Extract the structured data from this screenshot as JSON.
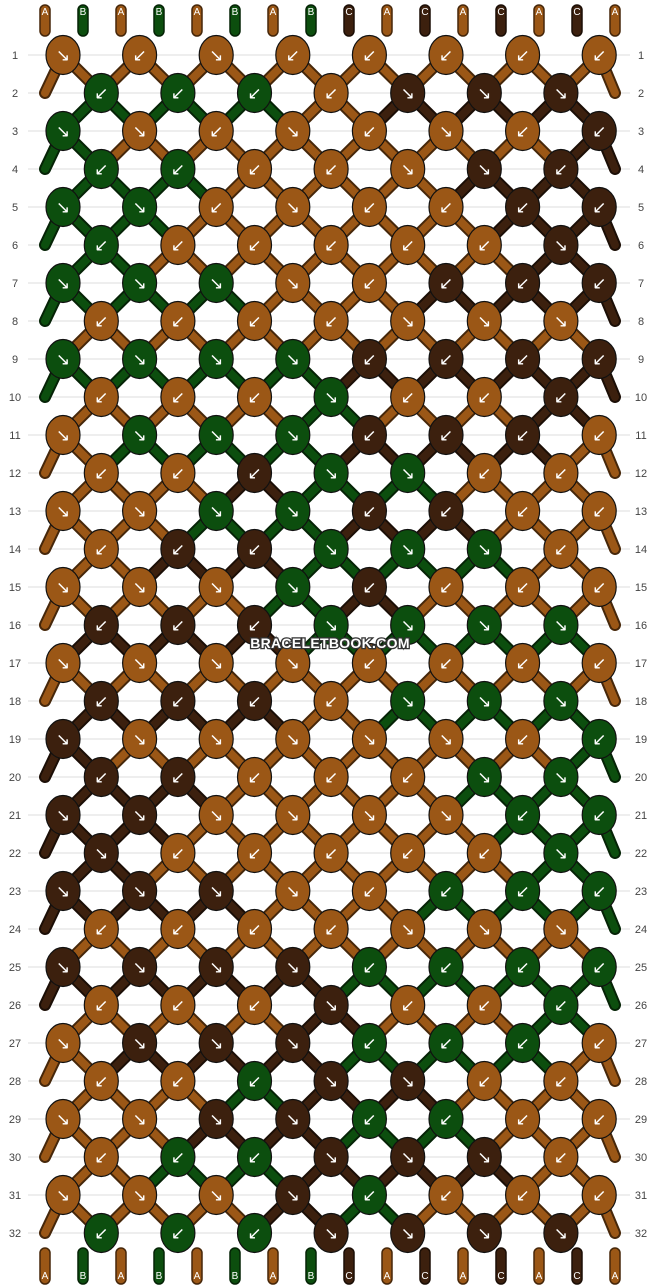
{
  "pattern": {
    "watermark": "BRACELETBOOK.COM",
    "strings": [
      "A",
      "B",
      "A",
      "B",
      "A",
      "B",
      "A",
      "B",
      "C",
      "A",
      "C",
      "A",
      "C",
      "A",
      "C",
      "A"
    ],
    "bottom_strings": [
      "A",
      "B",
      "A",
      "B",
      "A",
      "B",
      "A",
      "B",
      "C",
      "A",
      "C",
      "A",
      "C",
      "A",
      "C",
      "A"
    ],
    "colors": {
      "A": "#9b5716",
      "B": "#0c4e0e",
      "C": "#3c200e"
    },
    "row_numbers": [
      "1",
      "2",
      "3",
      "4",
      "5",
      "6",
      "7",
      "8",
      "9",
      "10",
      "11",
      "12",
      "13",
      "14",
      "15",
      "16",
      "17",
      "18",
      "19",
      "20",
      "21",
      "22",
      "23",
      "24",
      "25",
      "26",
      "27",
      "28",
      "29",
      "30",
      "31",
      "32"
    ],
    "knot_arrow_glyphs": {
      "forward": "↘",
      "backward": "↙",
      "forward_backward": "↘↙",
      "backward_forward": "↙↘"
    },
    "rows": [
      [
        "A:f",
        "A:b",
        "A:f",
        "A:b",
        "A:b",
        "A:b",
        "A:b",
        "A:b"
      ],
      [
        "B:b",
        "B:b",
        "B:b",
        "A:b",
        "C:f",
        "C:f",
        "C:f"
      ],
      [
        "B:f",
        "A:f",
        "A:b",
        "A:f",
        "A:b",
        "A:f",
        "A:b",
        "C:b"
      ],
      [
        "B:b",
        "B:b",
        "A:b",
        "A:b",
        "A:f",
        "C:f",
        "C:b"
      ],
      [
        "B:f",
        "B:f",
        "A:b",
        "A:f",
        "A:b",
        "A:b",
        "C:b",
        "C:b"
      ],
      [
        "B:b",
        "A:b",
        "A:b",
        "A:b",
        "A:b",
        "A:b",
        "C:f"
      ],
      [
        "B:f",
        "B:f",
        "B:f",
        "A:f",
        "A:b",
        "C:b",
        "C:b",
        "C:b"
      ],
      [
        "A:b",
        "A:b",
        "A:b",
        "A:b",
        "A:f",
        "A:f",
        "A:f"
      ],
      [
        "B:f",
        "B:f",
        "B:f",
        "B:f",
        "C:b",
        "C:b",
        "C:b",
        "C:b"
      ],
      [
        "A:b",
        "A:b",
        "A:b",
        "B:f",
        "A:b",
        "A:b",
        "C:b"
      ],
      [
        "A:f",
        "B:f",
        "B:f",
        "B:f",
        "C:b",
        "C:b",
        "C:b",
        "A:b"
      ],
      [
        "A:b",
        "A:b",
        "C:b",
        "B:f",
        "B:f",
        "A:b",
        "A:b"
      ],
      [
        "A:f",
        "A:f",
        "B:f",
        "B:f",
        "C:b",
        "C:b",
        "A:b",
        "A:b"
      ],
      [
        "A:b",
        "C:b",
        "C:b",
        "B:f",
        "B:f",
        "B:f",
        "A:b"
      ],
      [
        "A:f",
        "A:f",
        "A:f",
        "B:f",
        "C:b",
        "A:b",
        "A:b",
        "A:b"
      ],
      [
        "C:b",
        "C:b",
        "C:b",
        "B:f",
        "B:f",
        "B:f",
        "B:f"
      ],
      [
        "A:f",
        "A:f",
        "A:f",
        "A:f",
        "A:b",
        "A:b",
        "A:b",
        "A:b"
      ],
      [
        "C:b",
        "C:b",
        "C:b",
        "A:b",
        "B:f",
        "B:f",
        "B:f"
      ],
      [
        "C:f",
        "A:f",
        "A:f",
        "A:f",
        "A:f",
        "A:f",
        "A:b",
        "B:b"
      ],
      [
        "C:b",
        "C:b",
        "A:b",
        "A:b",
        "A:b",
        "B:f",
        "B:f"
      ],
      [
        "C:f",
        "C:f",
        "A:f",
        "A:f",
        "A:f",
        "A:f",
        "B:b",
        "B:b"
      ],
      [
        "C:f",
        "A:b",
        "A:b",
        "A:b",
        "A:b",
        "A:b",
        "B:f"
      ],
      [
        "C:f",
        "C:f",
        "C:f",
        "A:f",
        "A:b",
        "B:b",
        "B:b",
        "B:b"
      ],
      [
        "A:b",
        "A:b",
        "A:b",
        "A:b",
        "A:f",
        "A:f",
        "A:f"
      ],
      [
        "C:f",
        "C:f",
        "C:f",
        "C:f",
        "B:b",
        "B:b",
        "B:b",
        "B:b"
      ],
      [
        "A:b",
        "A:b",
        "A:b",
        "C:f",
        "A:b",
        "A:b",
        "B:b"
      ],
      [
        "A:f",
        "C:f",
        "C:f",
        "C:f",
        "B:b",
        "B:b",
        "B:b",
        "A:b"
      ],
      [
        "A:b",
        "A:b",
        "B:b",
        "C:f",
        "C:f",
        "A:b",
        "A:b"
      ],
      [
        "A:f",
        "A:f",
        "C:f",
        "C:f",
        "B:b",
        "B:b",
        "A:b",
        "A:b"
      ],
      [
        "A:b",
        "B:b",
        "B:b",
        "C:f",
        "C:f",
        "C:f",
        "A:b"
      ],
      [
        "A:f",
        "A:f",
        "A:f",
        "C:f",
        "B:b",
        "A:b",
        "A:b",
        "A:b"
      ],
      [
        "B:b",
        "B:b",
        "B:b",
        "C:f",
        "C:f",
        "C:f",
        "C:f"
      ]
    ]
  }
}
